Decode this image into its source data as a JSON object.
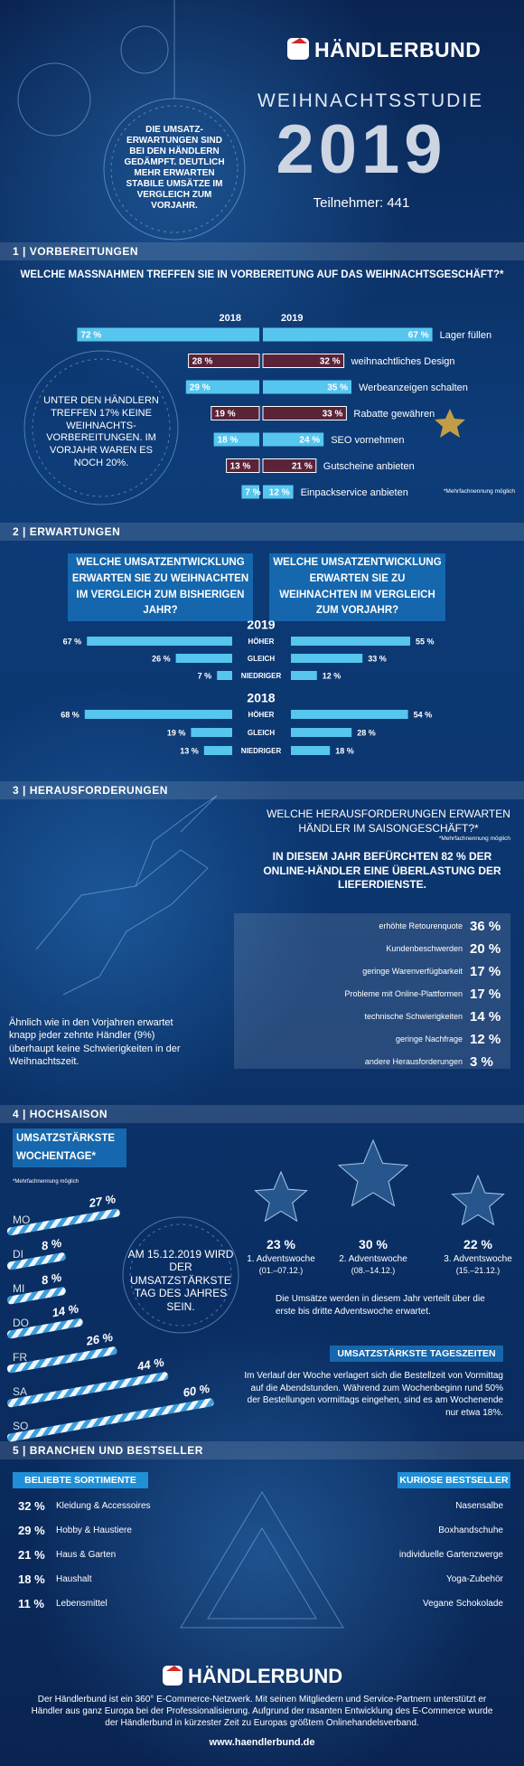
{
  "header": {
    "brand": "HÄNDLERBUND",
    "title": "WEIHNACHTSSTUDIE",
    "year": "2019",
    "participants": "Teilnehmer: 441",
    "bubble": "DIE UMSATZ-ERWARTUNGEN SIND BEI DEN HÄNDLERN GEDÄMPFT. DEUTLICH MEHR ERWARTEN STABILE UMSÄTZE IM VERGLEICH ZUM VORJAHR."
  },
  "sections": [
    {
      "title": "1 | VORBEREITUNGEN",
      "question": "WELCHE MASSNAHMEN TREFFEN SIE IN VORBEREITUNG AUF DAS WEIHNACHTSGESCHÄFT?*",
      "footnote": "*Mehrfachnennung möglich",
      "note": "UNTER DEN HÄNDLERN TREFFEN 17% KEINE WEIHNACHTS-VORBEREITUNGEN. IM VORJAHR WAREN ES NOCH 20%."
    },
    {
      "title": "2 | ERWARTUNGEN",
      "questions": [
        "WELCHE UMSATZENTWICKLUNG ERWARTEN SIE ZU WEIHNACHTEN IM VERGLEICH ZUM BISHERIGEN JAHR?",
        "WELCHE UMSATZENTWICKLUNG ERWARTEN SIE ZU WEIHNACHTEN IM VERGLEICH ZUM VORJAHR?"
      ]
    },
    {
      "title": "3 | HERAUSFORDERUNGEN",
      "question": "WELCHE HERAUSFORDERUNGEN ERWARTEN HÄNDLER IM SAISONGESCHÄFT?*",
      "footnote": "*Mehrfachnennung möglich",
      "statement": "IN DIESEM JAHR BEFÜRCHTEN 82 % DER ONLINE-HÄNDLER EINE ÜBERLASTUNG DER LIEFERDIENSTE.",
      "table": {
        "rows": [
          [
            "erhöhte Retourenquote",
            "36 %"
          ],
          [
            "Kundenbeschwerden",
            "20 %"
          ],
          [
            "geringe Warenverfügbarkeit",
            "17 %"
          ],
          [
            "Probleme mit Online-Plattformen",
            "17 %"
          ],
          [
            "technische Schwierigkeiten",
            "14 %"
          ],
          [
            "geringe Nachfrage",
            "12 %"
          ],
          [
            "andere Herausforderungen",
            "3 %"
          ]
        ]
      },
      "note": "Ähnlich wie in den Vorjahren erwartet knapp jeder zehnte Händler (9%) überhaupt keine Schwierigkeiten in der Weihnachtszeit."
    },
    {
      "title": "4 | HOCHSAISON",
      "box": "UMSATZSTÄRKSTE WOCHENTAGE*",
      "footnote": "*Mehrfachnennung möglich",
      "circle": "AM 15.12.2019 WIRD DER UMSATZSTÄRKSTE TAG DES JAHRES SEIN.",
      "weeks": [
        {
          "value": "23 %",
          "label": "1. Adventswoche",
          "dates": "(01.–07.12.)"
        },
        {
          "value": "30 %",
          "label": "2. Adventswoche",
          "dates": "(08.–14.12.)"
        },
        {
          "value": "22 %",
          "label": "3. Adventswoche",
          "dates": "(15.–21.12.)"
        }
      ],
      "weeks_text": "Die Umsätze werden in diesem Jahr verteilt über die erste bis dritte Adventswoche erwartet.",
      "box2": "UMSATZSTÄRKSTE TAGESZEITEN",
      "text2": "Im Verlauf der Woche verlagert sich die Bestellzeit von Vormittag auf die Abendstunden. Während zum Wochenbeginn rund 50% der Bestellungen vormittags eingehen, sind es am Wochenende nur etwa 18%."
    },
    {
      "title": "5 | BRANCHEN UND BESTSELLER",
      "left_title": "BELIEBTE SORTIMENTE",
      "left_rows": [
        [
          "32 %",
          "Kleidung & Accessoires"
        ],
        [
          "29 %",
          "Hobby & Haustiere"
        ],
        [
          "21 %",
          "Haus & Garten"
        ],
        [
          "18 %",
          "Haushalt"
        ],
        [
          "11 %",
          "Lebensmittel"
        ]
      ],
      "right_title": "KURIOSE BESTSELLER",
      "right_rows": [
        "Nasensalbe",
        "Boxhandschuhe",
        "individuelle Gartenzwerge",
        "Yoga-Zubehör",
        "Vegane Schokolade"
      ]
    }
  ],
  "chart_data": [
    {
      "type": "butterfly",
      "categories": [
        "Lager füllen",
        "weihnachtliches Design",
        "Werbeanzeigen schalten",
        "Rabatte gewähren",
        "SEO vornehmen",
        "Gutscheine anbieten",
        "Einpackservice anbieten"
      ],
      "series": [
        {
          "name": "2018",
          "values": [
            72,
            28,
            29,
            19,
            18,
            13,
            7
          ],
          "value_labels": [
            "72 %",
            "28 %",
            "29 %",
            "19 %",
            "18 %",
            "13 %",
            "7 %"
          ]
        },
        {
          "name": "2019",
          "values": [
            67,
            32,
            35,
            33,
            24,
            21,
            12
          ],
          "value_labels": [
            "67 %",
            "32 %",
            "35 %",
            "33 %",
            "24 %",
            "21 %",
            "12 %"
          ]
        }
      ],
      "colors": [
        "#56c6ef",
        "#5a2338"
      ]
    },
    {
      "type": "butterfly",
      "title": "2019",
      "categories": [
        "HÖHER",
        "GLEICH",
        "NIEDRIGER"
      ],
      "series": [
        {
          "values": [
            67,
            26,
            7
          ],
          "value_labels": [
            "67 %",
            "26 %",
            "7 %"
          ]
        },
        {
          "values": [
            55,
            33,
            12
          ],
          "value_labels": [
            "55 %",
            "33 %",
            "12 %"
          ]
        }
      ],
      "colors": [
        "#56c6ef"
      ]
    },
    {
      "type": "butterfly",
      "title": "2018",
      "categories": [
        "HÖHER",
        "GLEICH",
        "NIEDRIGER"
      ],
      "series": [
        {
          "values": [
            68,
            19,
            13
          ],
          "value_labels": [
            "68 %",
            "19 %",
            "13 %"
          ]
        },
        {
          "values": [
            54,
            28,
            18
          ],
          "value_labels": [
            "54 %",
            "28 %",
            "18 %"
          ]
        }
      ],
      "colors": [
        "#56c6ef"
      ]
    },
    {
      "type": "candy",
      "categories": [
        "MO",
        "DI",
        "MI",
        "DO",
        "FR",
        "SA",
        "SO"
      ],
      "values": [
        27,
        8,
        8,
        14,
        26,
        44,
        60
      ],
      "value_labels": [
        "27 %",
        "8 %",
        "8 %",
        "14 %",
        "26 %",
        "44 %",
        "60 %"
      ],
      "colors": [
        "#eef5fc",
        "#3d9fdc"
      ]
    }
  ],
  "footer": {
    "brand": "HÄNDLERBUND",
    "text": "Der Händlerbund ist ein 360° E-Commerce-Netzwerk. Mit seinen Mitgliedern und Service-Partnern unterstützt er Händler aus ganz Europa bei der Professionalisierung. Aufgrund der rasanten Entwicklung des E-Commerce wurde der Händlerbund in kürzester Zeit zu Europas größtem Onlinehandelsverband.",
    "url": "www.haendlerbund.de"
  }
}
